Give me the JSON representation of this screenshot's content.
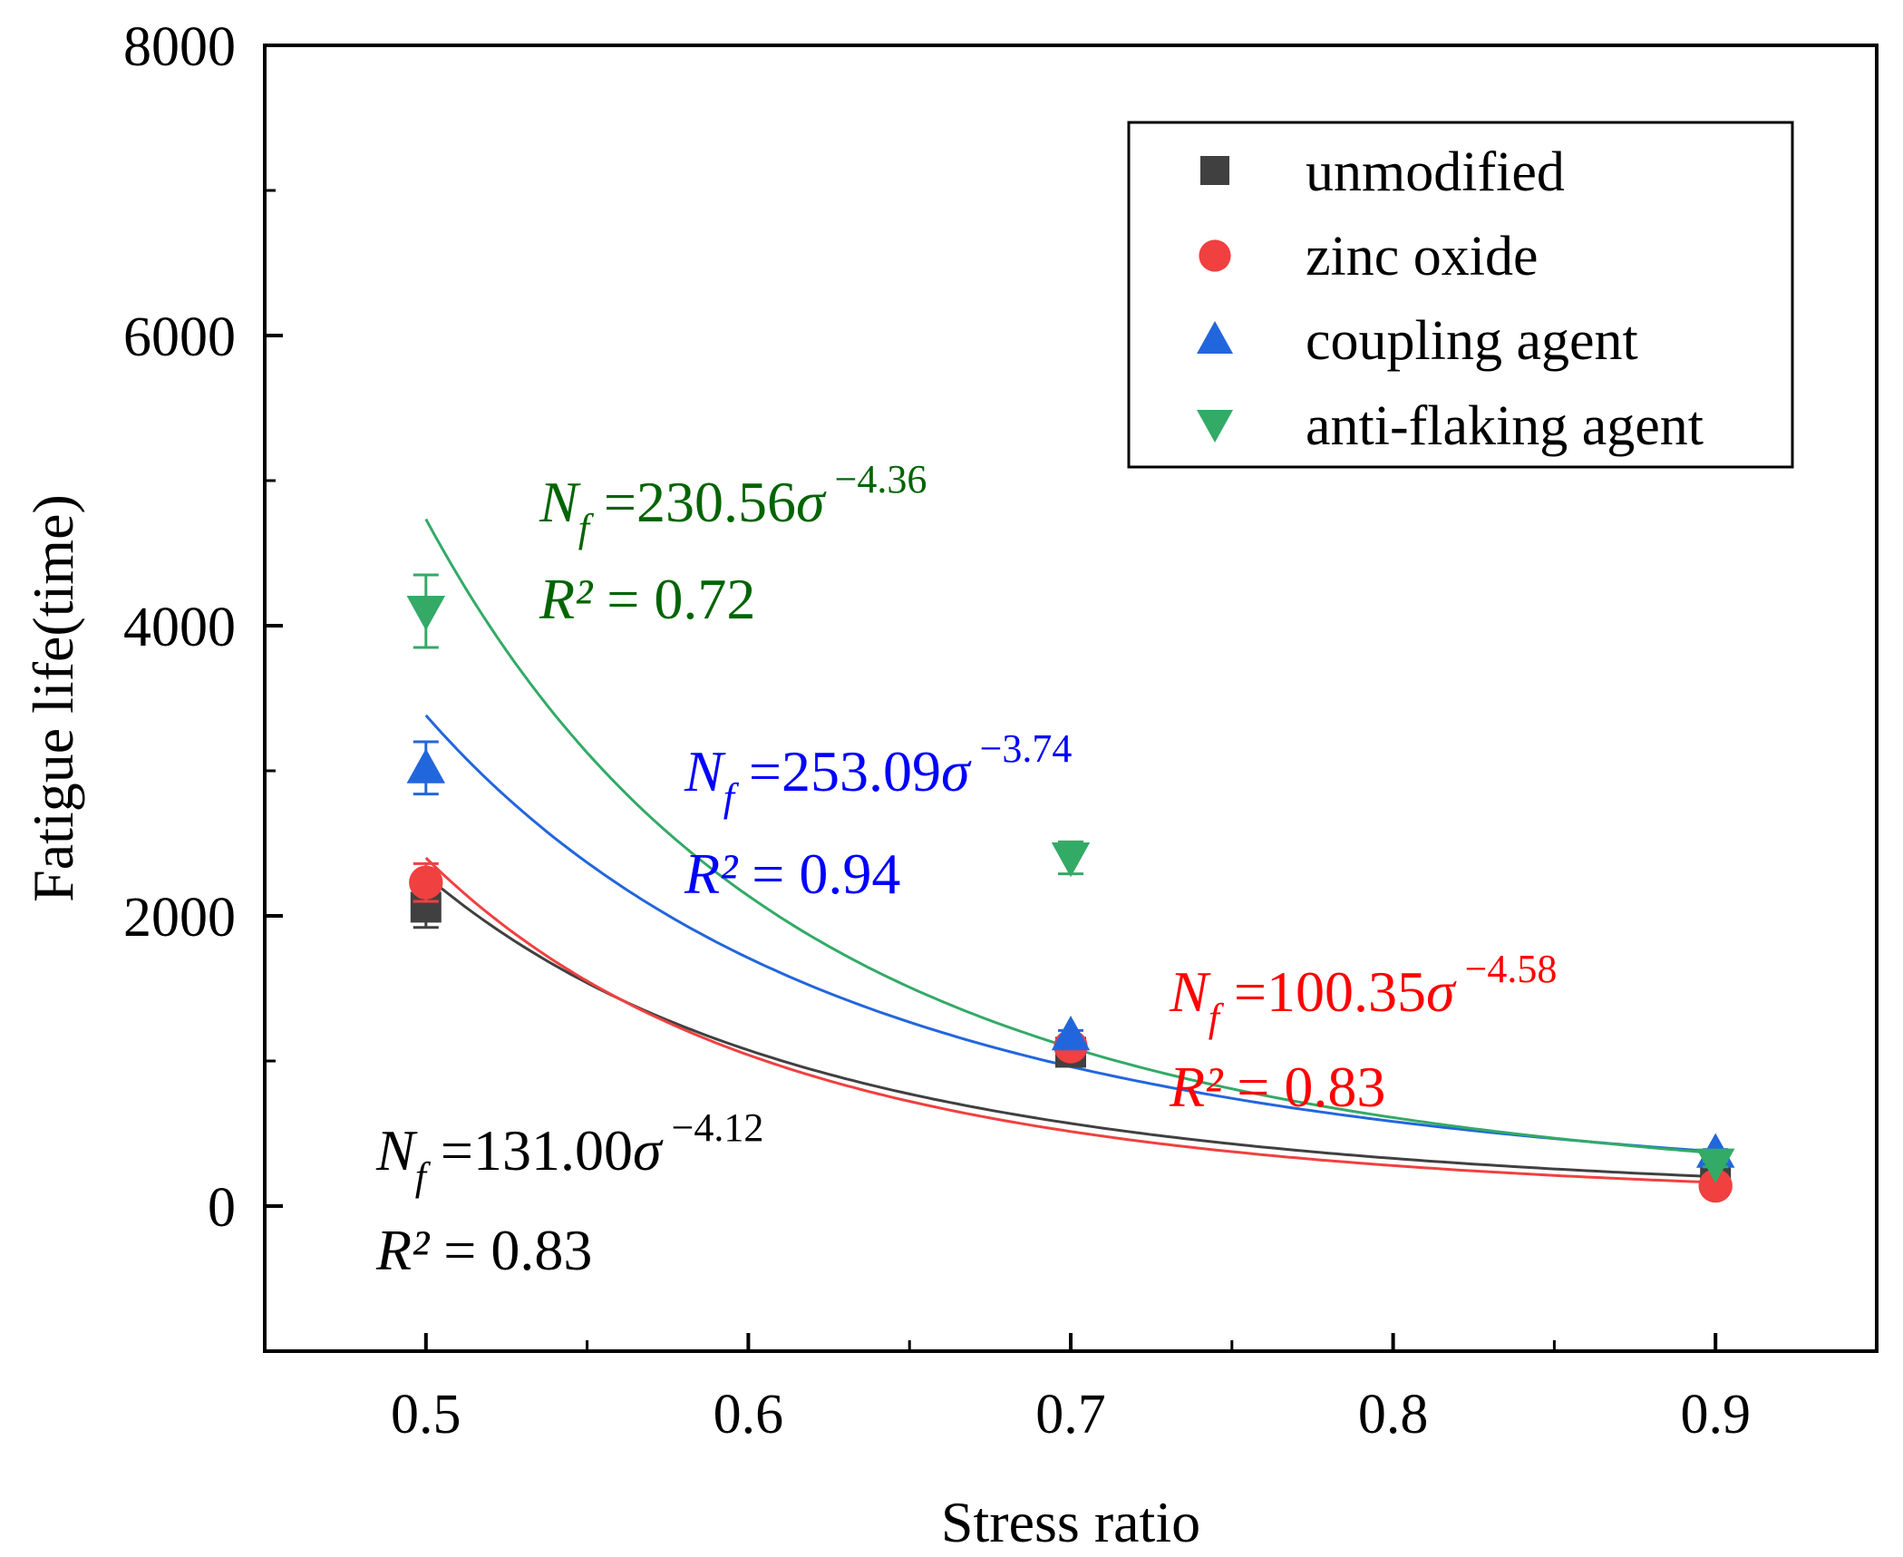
{
  "chart_data": {
    "type": "scatter",
    "xlabel": "Stress ratio",
    "ylabel": "Fatigue life(time)",
    "xlim": [
      0.45,
      0.95
    ],
    "ylim": [
      -1000,
      8000
    ],
    "x_ticks": [
      0.5,
      0.6,
      0.7,
      0.8,
      0.9
    ],
    "x_tick_labels": [
      "0.5",
      "0.6",
      "0.7",
      "0.8",
      "0.9"
    ],
    "y_ticks": [
      0,
      2000,
      4000,
      6000,
      8000
    ],
    "y_tick_labels": [
      "0",
      "2000",
      "4000",
      "6000",
      "8000"
    ],
    "legend_position": "top-right",
    "series": [
      {
        "name": "unmodified",
        "marker": "square",
        "color": "#404040",
        "x": [
          0.5,
          0.7,
          0.9
        ],
        "y": [
          2060,
          1060,
          200
        ],
        "err": [
          140,
          30,
          20
        ],
        "fit": {
          "a": 131.0,
          "b": -4.12
        },
        "equation": {
          "lhs": "N",
          "sub": "f",
          "coef": " =131.00",
          "var": "σ",
          "exp": " −4.12",
          "r2_sym": "R²",
          "r2_val": " = 0.83"
        }
      },
      {
        "name": "zinc oxide",
        "marker": "circle",
        "color": "#f04040",
        "x": [
          0.5,
          0.7,
          0.9
        ],
        "y": [
          2230,
          1100,
          140
        ],
        "err": [
          130,
          30,
          20
        ],
        "fit": {
          "a": 100.35,
          "b": -4.58
        },
        "equation": {
          "lhs": "N",
          "sub": "f",
          "coef": " =100.35",
          "var": "σ",
          "exp": " −4.58",
          "r2_sym": "R²",
          "r2_val": " = 0.83"
        }
      },
      {
        "name": "coupling agent",
        "marker": "triangle-up",
        "color": "#2266dd",
        "x": [
          0.5,
          0.7,
          0.9
        ],
        "y": [
          3020,
          1180,
          370
        ],
        "err": [
          180,
          30,
          20
        ],
        "fit": {
          "a": 253.09,
          "b": -3.74
        },
        "equation": {
          "lhs": "N",
          "sub": "f",
          "coef": " =253.09",
          "var": "σ",
          "exp": " −3.74",
          "r2_sym": "R²",
          "r2_val": " = 0.94"
        }
      },
      {
        "name": "anti-flaking agent",
        "marker": "triangle-down",
        "color": "#33aa66",
        "x": [
          0.5,
          0.7,
          0.9
        ],
        "y": [
          4100,
          2400,
          290
        ],
        "err": [
          250,
          110,
          20
        ],
        "fit": {
          "a": 230.56,
          "b": -4.36
        },
        "equation": {
          "lhs": "N",
          "sub": "f",
          "coef": " =230.56",
          "var": "σ",
          "exp": " −4.36",
          "r2_sym": "R²",
          "r2_val": " = 0.72"
        }
      }
    ],
    "equation_colors": [
      "#000000",
      "#ff0000",
      "#0000ff",
      "#006400"
    ]
  }
}
